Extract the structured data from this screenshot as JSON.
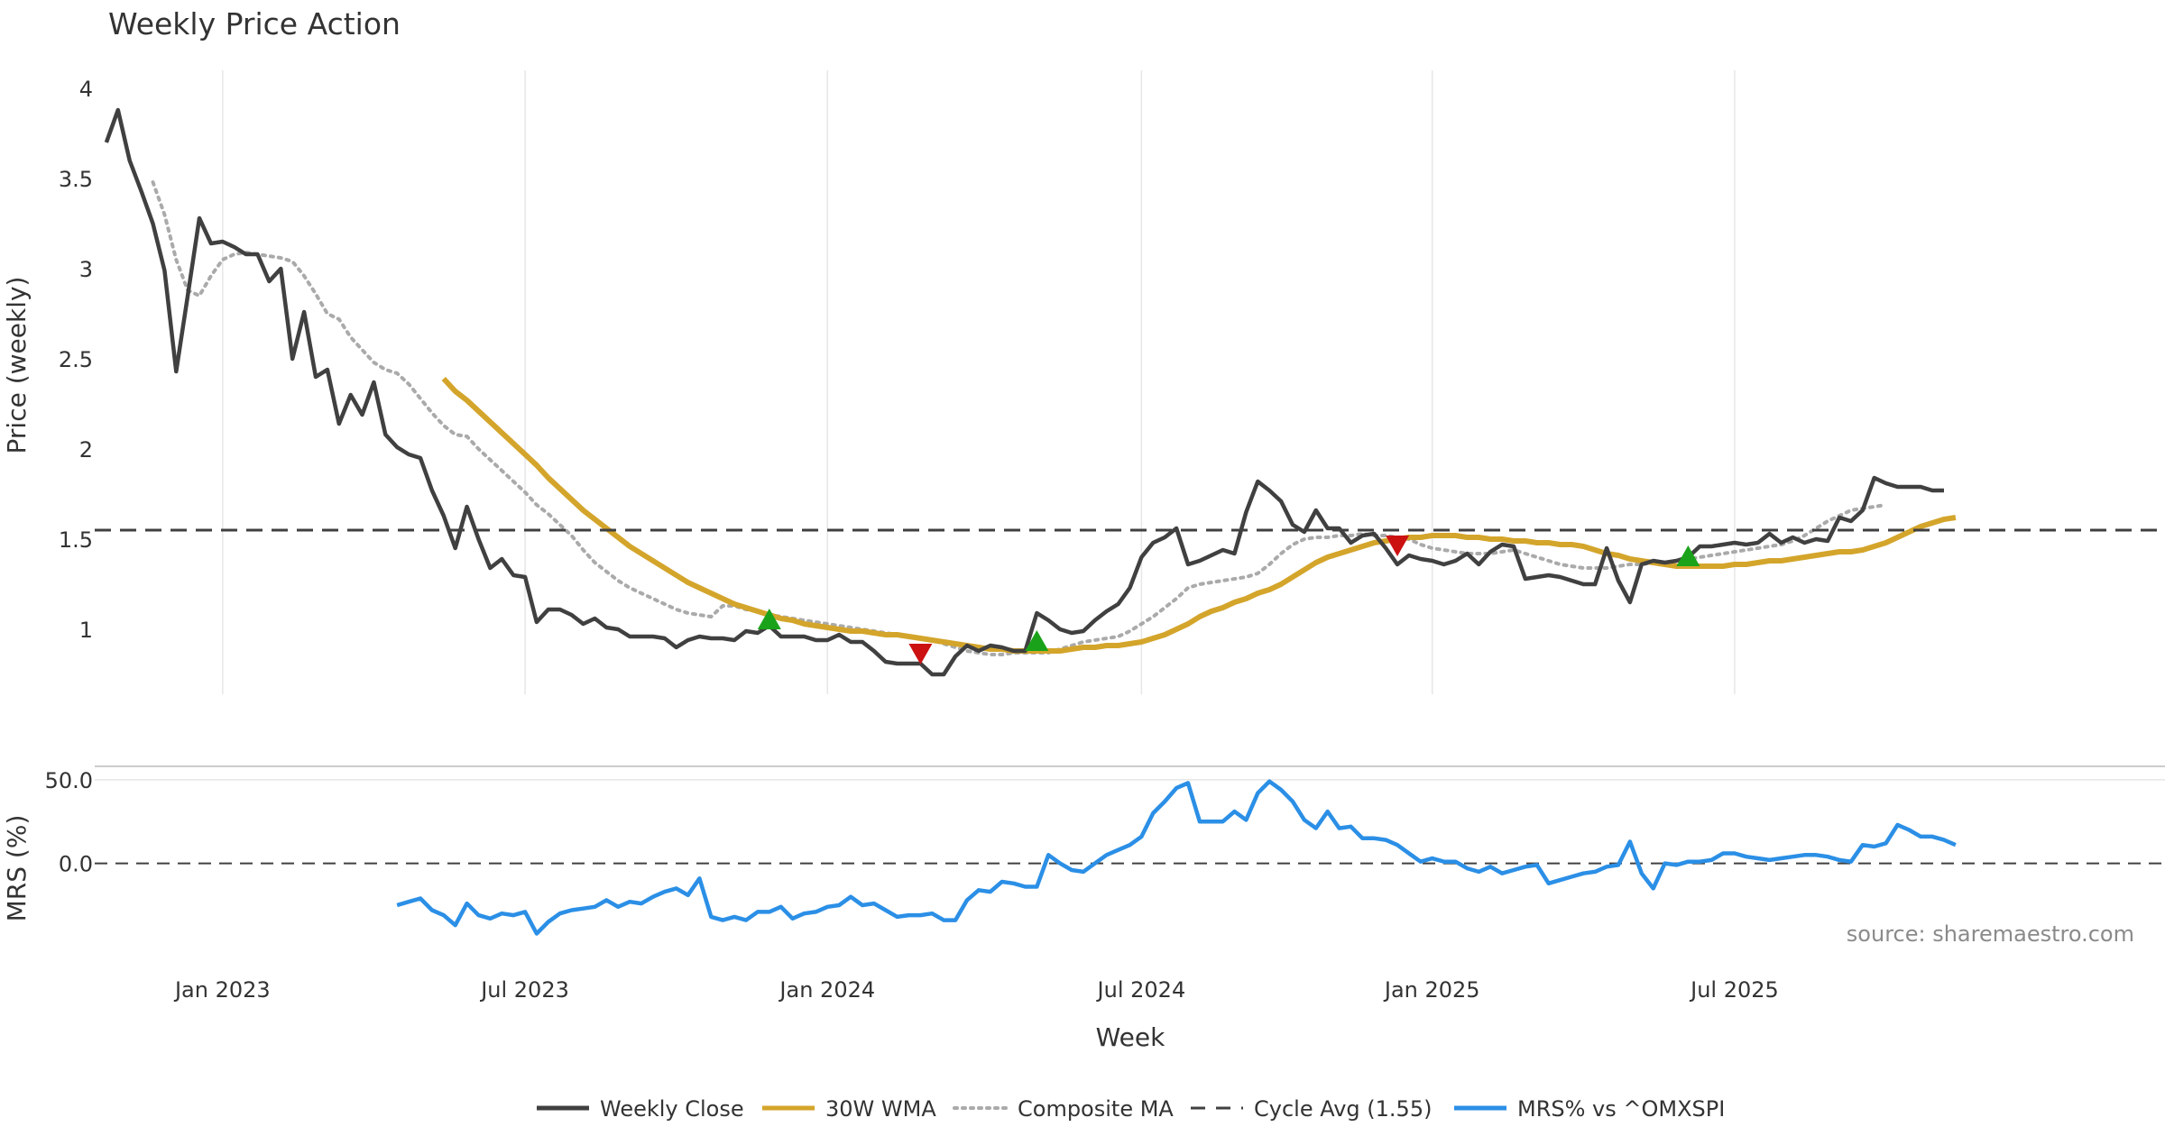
{
  "chart_data": [
    {
      "type": "line",
      "title": "Weekly Price Action",
      "ylabel": "Price (weekly)",
      "ylim": [
        0.64,
        4.1
      ],
      "yticks": [
        1,
        1.5,
        2,
        2.5,
        3,
        3.5,
        4
      ],
      "ytick_labels": [
        "1",
        "1.5",
        "2",
        "2.5",
        "3",
        "3.5",
        "4"
      ],
      "x_range": [
        -1,
        177
      ],
      "x_grid_weeks": [
        10,
        36,
        62,
        89,
        114,
        140
      ],
      "series": [
        {
          "name": "Weekly Close",
          "color": "#404040",
          "x_start": 0,
          "values": [
            3.7,
            3.88,
            3.6,
            3.43,
            3.25,
            2.99,
            2.43,
            2.85,
            3.28,
            3.14,
            3.15,
            3.12,
            3.08,
            3.08,
            2.93,
            3.0,
            2.5,
            2.76,
            2.4,
            2.44,
            2.14,
            2.3,
            2.19,
            2.37,
            2.08,
            2.01,
            1.97,
            1.95,
            1.77,
            1.63,
            1.45,
            1.68,
            1.5,
            1.34,
            1.39,
            1.3,
            1.29,
            1.04,
            1.11,
            1.11,
            1.08,
            1.03,
            1.06,
            1.01,
            1.0,
            0.96,
            0.96,
            0.96,
            0.95,
            0.9,
            0.94,
            0.96,
            0.95,
            0.95,
            0.94,
            0.99,
            0.98,
            1.02,
            0.96,
            0.96,
            0.96,
            0.94,
            0.94,
            0.97,
            0.93,
            0.93,
            0.88,
            0.82,
            0.81,
            0.81,
            0.81,
            0.75,
            0.75,
            0.85,
            0.91,
            0.88,
            0.91,
            0.9,
            0.88,
            0.88,
            1.09,
            1.05,
            1.0,
            0.98,
            0.99,
            1.05,
            1.1,
            1.14,
            1.23,
            1.4,
            1.48,
            1.51,
            1.56,
            1.36,
            1.38,
            1.41,
            1.44,
            1.42,
            1.65,
            1.82,
            1.77,
            1.71,
            1.58,
            1.54,
            1.66,
            1.56,
            1.56,
            1.48,
            1.52,
            1.53,
            1.45,
            1.36,
            1.41,
            1.39,
            1.38,
            1.36,
            1.38,
            1.42,
            1.36,
            1.43,
            1.47,
            1.46,
            1.28,
            1.29,
            1.3,
            1.29,
            1.27,
            1.25,
            1.25,
            1.45,
            1.27,
            1.15,
            1.36,
            1.38,
            1.37,
            1.38,
            1.4,
            1.46,
            1.46,
            1.47,
            1.48,
            1.47,
            1.48,
            1.53,
            1.48,
            1.51,
            1.48,
            1.5,
            1.49,
            1.62,
            1.6,
            1.66,
            1.84,
            1.81,
            1.79,
            1.79,
            1.79,
            1.77,
            1.77
          ]
        },
        {
          "name": "30W WMA",
          "color": "#d4a52b",
          "x_start": 29,
          "values": [
            2.39,
            2.32,
            2.27,
            2.21,
            2.15,
            2.09,
            2.03,
            1.97,
            1.91,
            1.84,
            1.78,
            1.72,
            1.66,
            1.61,
            1.56,
            1.51,
            1.46,
            1.42,
            1.38,
            1.34,
            1.3,
            1.26,
            1.23,
            1.2,
            1.17,
            1.14,
            1.12,
            1.1,
            1.08,
            1.06,
            1.05,
            1.03,
            1.02,
            1.01,
            1.0,
            0.99,
            0.99,
            0.98,
            0.97,
            0.97,
            0.96,
            0.95,
            0.94,
            0.93,
            0.92,
            0.91,
            0.9,
            0.89,
            0.89,
            0.88,
            0.88,
            0.88,
            0.88,
            0.88,
            0.89,
            0.9,
            0.9,
            0.91,
            0.91,
            0.92,
            0.93,
            0.95,
            0.97,
            1.0,
            1.03,
            1.07,
            1.1,
            1.12,
            1.15,
            1.17,
            1.2,
            1.22,
            1.25,
            1.29,
            1.33,
            1.37,
            1.4,
            1.42,
            1.44,
            1.46,
            1.48,
            1.49,
            1.5,
            1.51,
            1.51,
            1.52,
            1.52,
            1.52,
            1.51,
            1.51,
            1.5,
            1.5,
            1.49,
            1.49,
            1.48,
            1.48,
            1.47,
            1.47,
            1.46,
            1.44,
            1.42,
            1.41,
            1.39,
            1.38,
            1.37,
            1.36,
            1.35,
            1.35,
            1.35,
            1.35,
            1.35,
            1.36,
            1.36,
            1.37,
            1.38,
            1.38,
            1.39,
            1.4,
            1.41,
            1.42,
            1.43,
            1.43,
            1.44,
            1.46,
            1.48,
            1.51,
            1.54,
            1.57,
            1.59,
            1.61,
            1.62
          ]
        },
        {
          "name": "Composite MA",
          "color": "#aaaaaa",
          "x_start": 4,
          "values": [
            3.48,
            3.3,
            3.05,
            2.88,
            2.85,
            2.96,
            3.05,
            3.08,
            3.09,
            3.08,
            3.07,
            3.06,
            3.04,
            2.96,
            2.86,
            2.75,
            2.72,
            2.62,
            2.55,
            2.48,
            2.44,
            2.42,
            2.36,
            2.28,
            2.2,
            2.13,
            2.08,
            2.07,
            2.0,
            1.94,
            1.88,
            1.82,
            1.76,
            1.69,
            1.64,
            1.58,
            1.52,
            1.44,
            1.37,
            1.32,
            1.27,
            1.23,
            1.2,
            1.17,
            1.14,
            1.11,
            1.09,
            1.08,
            1.07,
            1.13,
            1.13,
            1.11,
            1.1,
            1.08,
            1.07,
            1.06,
            1.05,
            1.04,
            1.03,
            1.02,
            1.01,
            1.0,
            0.99,
            0.98,
            0.97,
            0.96,
            0.95,
            0.94,
            0.92,
            0.9,
            0.88,
            0.87,
            0.86,
            0.86,
            0.87,
            0.87,
            0.87,
            0.87,
            0.89,
            0.91,
            0.93,
            0.94,
            0.95,
            0.96,
            0.99,
            1.03,
            1.07,
            1.12,
            1.17,
            1.23,
            1.25,
            1.26,
            1.27,
            1.28,
            1.29,
            1.31,
            1.36,
            1.42,
            1.47,
            1.5,
            1.51,
            1.51,
            1.52,
            1.52,
            1.53,
            1.52,
            1.52,
            1.51,
            1.5,
            1.47,
            1.45,
            1.44,
            1.43,
            1.42,
            1.42,
            1.42,
            1.43,
            1.44,
            1.42,
            1.4,
            1.38,
            1.36,
            1.35,
            1.34,
            1.34,
            1.34,
            1.35,
            1.36,
            1.36,
            1.37,
            1.37,
            1.38,
            1.39,
            1.4,
            1.41,
            1.42,
            1.43,
            1.44,
            1.45,
            1.46,
            1.47,
            1.49,
            1.52,
            1.56,
            1.6,
            1.63,
            1.66,
            1.67,
            1.68,
            1.69
          ]
        },
        {
          "name": "Cycle Avg (1.55)",
          "color": "#404040",
          "constant": 1.55
        }
      ],
      "buy_signals": [
        {
          "x": 57,
          "y": 1.05
        },
        {
          "x": 80,
          "y": 0.93
        },
        {
          "x": 136,
          "y": 1.4
        }
      ],
      "sell_signals": [
        {
          "x": 70,
          "y": 0.87
        },
        {
          "x": 111,
          "y": 1.47
        }
      ]
    },
    {
      "type": "line",
      "ylabel": "MRS (%)",
      "ylim": [
        -66,
        58
      ],
      "yticks": [
        0,
        50
      ],
      "ytick_labels": [
        "0.0",
        "50.0"
      ],
      "xlabel": "Week",
      "x_range": [
        -1,
        177
      ],
      "x_ticks": [
        {
          "x": 10,
          "label": "Jan 2023"
        },
        {
          "x": 36,
          "label": "Jul 2023"
        },
        {
          "x": 62,
          "label": "Jan 2024"
        },
        {
          "x": 89,
          "label": "Jul 2024"
        },
        {
          "x": 114,
          "label": "Jan 2025"
        },
        {
          "x": 140,
          "label": "Jul 2025"
        }
      ],
      "zero_line": 0,
      "series": [
        {
          "name": "MRS% vs ^OMXSPI",
          "color": "#2b8fe6",
          "x_start": 25,
          "values": [
            -25,
            -23,
            -21,
            -28,
            -31,
            -37,
            -24,
            -31,
            -33,
            -30,
            -31,
            -29,
            -42,
            -35,
            -30,
            -28,
            -27,
            -26,
            -22,
            -26,
            -23,
            -24,
            -20,
            -17,
            -15,
            -19,
            -9,
            -32,
            -34,
            -32,
            -34,
            -29,
            -29,
            -26,
            -33,
            -30,
            -29,
            -26,
            -25,
            -20,
            -25,
            -24,
            -28,
            -32,
            -31,
            -31,
            -30,
            -34,
            -34,
            -22,
            -16,
            -17,
            -11,
            -12,
            -14,
            -14,
            5,
            0,
            -4,
            -5,
            0,
            5,
            8,
            11,
            16,
            30,
            37,
            45,
            48,
            25,
            25,
            25,
            31,
            26,
            42,
            49,
            44,
            37,
            26,
            21,
            31,
            21,
            22,
            15,
            15,
            14,
            11,
            6,
            1,
            3,
            1,
            1,
            -3,
            -5,
            -2,
            -6,
            -4,
            -2,
            -1,
            -12,
            -10,
            -8,
            -6,
            -5,
            -2,
            -1,
            13,
            -6,
            -15,
            0,
            -1,
            1,
            1,
            2,
            6,
            6,
            4,
            3,
            2,
            3,
            4,
            5,
            5,
            4,
            2,
            1,
            11,
            10,
            12,
            23,
            20,
            16,
            16,
            14,
            11
          ]
        }
      ],
      "source_text": "source: sharemaestro.com"
    }
  ],
  "legend": [
    {
      "label": "Weekly Close",
      "style": "solid",
      "color": "#404040"
    },
    {
      "label": "30W WMA",
      "style": "solid",
      "color": "#d4a52b"
    },
    {
      "label": "Composite MA",
      "style": "dotted",
      "color": "#aaaaaa"
    },
    {
      "label": "Cycle Avg (1.55)",
      "style": "dashed",
      "color": "#404040"
    },
    {
      "label": "MRS% vs ^OMXSPI",
      "style": "solid",
      "color": "#2b8fe6"
    }
  ],
  "colors": {
    "buy": "#1aa31a",
    "sell": "#cc1111",
    "grid": "#e6e6e6"
  }
}
